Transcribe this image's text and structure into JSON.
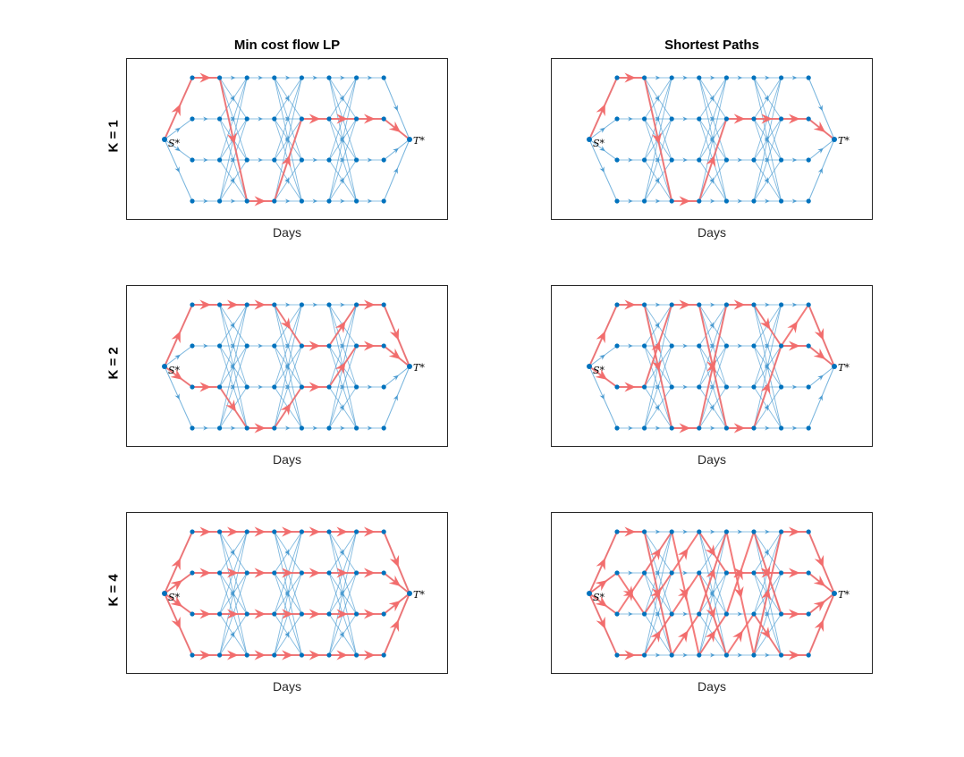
{
  "figure": {
    "column_titles": [
      "Min cost flow LP",
      "Shortest Paths"
    ],
    "row_labels": [
      "K = 1",
      "K = 2",
      "K = 4"
    ],
    "xlabel": "Days",
    "source_label": "S*",
    "sink_label": "T*"
  },
  "colors": {
    "edge_base": "#4a9bd1",
    "edge_flow": "#f26d6d",
    "node": "#0072bd",
    "axes": "#262626"
  },
  "graph": {
    "days": 8,
    "levels": 4
  },
  "panels": [
    {
      "row": 0,
      "col": 0,
      "k": 1,
      "flow_path": [
        [
          -1,
          "S"
        ],
        [
          0,
          0
        ],
        [
          1,
          0
        ],
        [
          2,
          3
        ],
        [
          3,
          3
        ],
        [
          4,
          1
        ],
        [
          5,
          1
        ],
        [
          6,
          1
        ],
        [
          7,
          1
        ],
        [
          -1,
          "T"
        ]
      ]
    },
    {
      "row": 0,
      "col": 1,
      "k": 1,
      "flow_path": [
        [
          -1,
          "S"
        ],
        [
          0,
          0
        ],
        [
          1,
          0
        ],
        [
          2,
          3
        ],
        [
          3,
          3
        ],
        [
          4,
          1
        ],
        [
          5,
          1
        ],
        [
          6,
          1
        ],
        [
          7,
          1
        ],
        [
          -1,
          "T"
        ]
      ]
    },
    {
      "row": 1,
      "col": 0,
      "k": 2,
      "flow_path": [
        [
          -1,
          "S"
        ],
        [
          0,
          0
        ],
        [
          1,
          0
        ],
        [
          2,
          0
        ],
        [
          3,
          0
        ],
        [
          4,
          1
        ],
        [
          5,
          1
        ],
        [
          6,
          0
        ],
        [
          7,
          0
        ],
        [
          -1,
          "T"
        ]
      ],
      "flow_path2": [
        [
          -1,
          "S"
        ],
        [
          0,
          2
        ],
        [
          1,
          2
        ],
        [
          2,
          3
        ],
        [
          3,
          3
        ],
        [
          4,
          2
        ],
        [
          5,
          2
        ],
        [
          6,
          1
        ],
        [
          7,
          1
        ],
        [
          -1,
          "T"
        ]
      ]
    },
    {
      "row": 1,
      "col": 1,
      "k": 2,
      "flow_path": [
        [
          -1,
          "S"
        ],
        [
          0,
          0
        ],
        [
          1,
          0
        ],
        [
          2,
          3
        ],
        [
          3,
          3
        ],
        [
          4,
          0
        ],
        [
          5,
          0
        ],
        [
          6,
          1
        ],
        [
          7,
          0
        ],
        [
          -1,
          "T"
        ]
      ],
      "flow_path2": [
        [
          -1,
          "S"
        ],
        [
          0,
          2
        ],
        [
          1,
          2
        ],
        [
          2,
          0
        ],
        [
          3,
          0
        ],
        [
          4,
          3
        ],
        [
          5,
          3
        ],
        [
          6,
          1
        ],
        [
          7,
          1
        ],
        [
          -1,
          "T"
        ]
      ]
    },
    {
      "row": 2,
      "col": 0,
      "k": 4,
      "flow_path": [
        [
          -1,
          "S"
        ],
        [
          0,
          0
        ],
        [
          1,
          0
        ],
        [
          2,
          0
        ],
        [
          3,
          0
        ],
        [
          4,
          0
        ],
        [
          5,
          0
        ],
        [
          6,
          0
        ],
        [
          7,
          0
        ],
        [
          -1,
          "T"
        ]
      ],
      "flow_path2": [
        [
          -1,
          "S"
        ],
        [
          0,
          1
        ],
        [
          1,
          1
        ],
        [
          2,
          1
        ],
        [
          3,
          1
        ],
        [
          4,
          1
        ],
        [
          5,
          1
        ],
        [
          6,
          1
        ],
        [
          7,
          1
        ],
        [
          -1,
          "T"
        ]
      ],
      "flow_path3": [
        [
          -1,
          "S"
        ],
        [
          0,
          2
        ],
        [
          1,
          2
        ],
        [
          2,
          2
        ],
        [
          3,
          2
        ],
        [
          4,
          2
        ],
        [
          5,
          2
        ],
        [
          6,
          2
        ],
        [
          7,
          2
        ],
        [
          -1,
          "T"
        ]
      ],
      "flow_path4": [
        [
          -1,
          "S"
        ],
        [
          0,
          3
        ],
        [
          1,
          3
        ],
        [
          2,
          3
        ],
        [
          3,
          3
        ],
        [
          4,
          3
        ],
        [
          5,
          3
        ],
        [
          6,
          3
        ],
        [
          7,
          3
        ],
        [
          -1,
          "T"
        ]
      ]
    },
    {
      "row": 2,
      "col": 1,
      "k": 4,
      "flow_path": [
        [
          -1,
          "S"
        ],
        [
          0,
          0
        ],
        [
          1,
          0
        ],
        [
          2,
          3
        ],
        [
          3,
          2
        ],
        [
          4,
          0
        ],
        [
          5,
          3
        ],
        [
          6,
          0
        ],
        [
          7,
          0
        ],
        [
          -1,
          "T"
        ]
      ],
      "flow_path2": [
        [
          -1,
          "S"
        ],
        [
          0,
          1
        ],
        [
          1,
          2
        ],
        [
          2,
          1
        ],
        [
          3,
          0
        ],
        [
          4,
          1
        ],
        [
          5,
          1
        ],
        [
          6,
          1
        ],
        [
          7,
          1
        ],
        [
          -1,
          "T"
        ]
      ],
      "flow_path3": [
        [
          -1,
          "S"
        ],
        [
          0,
          2
        ],
        [
          1,
          1
        ],
        [
          2,
          0
        ],
        [
          3,
          3
        ],
        [
          4,
          2
        ],
        [
          5,
          0
        ],
        [
          6,
          2
        ],
        [
          7,
          2
        ],
        [
          -1,
          "T"
        ]
      ],
      "flow_path4": [
        [
          -1,
          "S"
        ],
        [
          0,
          3
        ],
        [
          1,
          3
        ],
        [
          2,
          2
        ],
        [
          3,
          1
        ],
        [
          4,
          3
        ],
        [
          5,
          2
        ],
        [
          6,
          3
        ],
        [
          7,
          3
        ],
        [
          -1,
          "T"
        ]
      ]
    }
  ]
}
